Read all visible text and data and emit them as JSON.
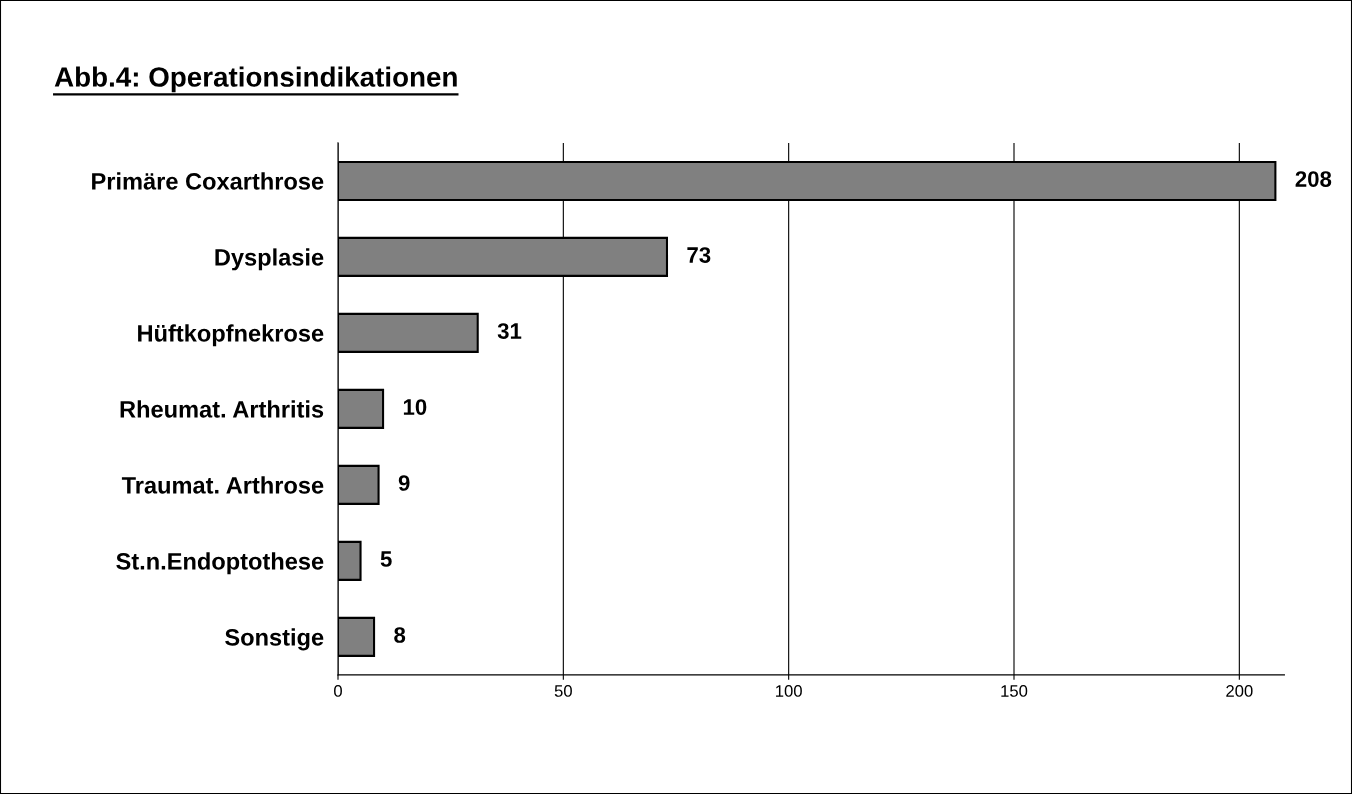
{
  "chart_data": {
    "type": "bar",
    "orientation": "horizontal",
    "title": "Abb.4: Operationsindikationen",
    "categories": [
      "Primäre Coxarthrose",
      "Dysplasie",
      "Hüftkopfnekrose",
      "Rheumat. Arthritis",
      "Traumat. Arthrose",
      "St.n.Endoptothese",
      "Sonstige"
    ],
    "values": [
      208,
      73,
      31,
      10,
      9,
      5,
      8
    ],
    "color": "#808080",
    "xlim": [
      0,
      210
    ],
    "xticks": [
      0,
      50,
      100,
      150,
      200
    ],
    "grid": "x",
    "data_labels": true
  }
}
